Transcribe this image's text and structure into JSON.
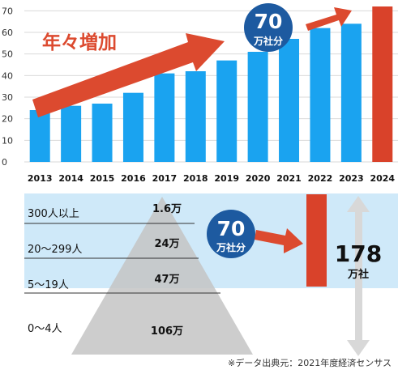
{
  "chart_data": [
    {
      "type": "bar",
      "title": "",
      "categories": [
        "2013",
        "2014",
        "2015",
        "2016",
        "2017",
        "2018",
        "2019",
        "2020",
        "2021",
        "2022",
        "2023",
        "2024"
      ],
      "values": [
        24,
        26,
        27,
        32,
        41,
        42,
        47,
        51,
        57,
        62,
        64,
        72
      ],
      "highlight_index": 11,
      "ylim": [
        0,
        72
      ],
      "yticks": [
        "0",
        "10",
        "20",
        "30",
        "40",
        "50",
        "60",
        "70"
      ],
      "grid": true,
      "colors": {
        "bar": "#1aa3f0",
        "highlight": "#d9422a",
        "arrow": "#dc4a2f",
        "badge": "#1d5aa0"
      },
      "annotations": {
        "trend_label": "年々増加",
        "badge_value": "70",
        "badge_unit": "万社分"
      }
    },
    {
      "type": "table",
      "rows": [
        {
          "label": "300人以上",
          "value": "1.6万"
        },
        {
          "label": "20〜299人",
          "value": "24万"
        },
        {
          "label": "5〜19人",
          "value": "47万"
        },
        {
          "label": "0〜4人",
          "value": "106万"
        }
      ],
      "badge_value": "70",
      "badge_unit": "万社分",
      "total_value": "178",
      "total_unit": "万社"
    }
  ],
  "source": "※データ出典元：2021年度経済センサス"
}
